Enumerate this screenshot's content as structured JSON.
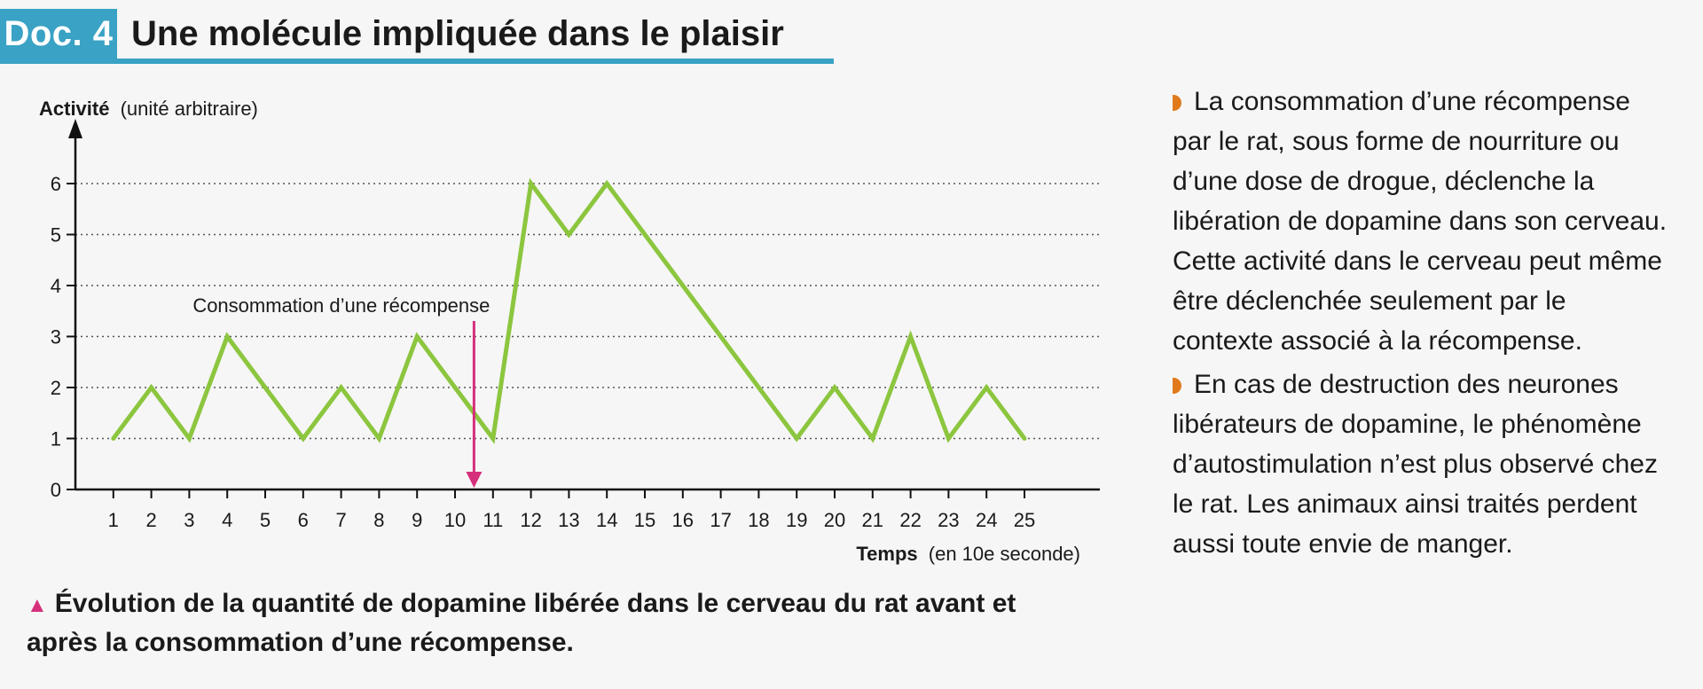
{
  "header": {
    "doc_label": "Doc. 4",
    "title": "Une molécule impliquée dans le plaisir"
  },
  "colors": {
    "accent": "#3aa2c4",
    "line": "#8cc63f",
    "arrow": "#d62f7c",
    "bullet": "#e07a1a"
  },
  "chart_data": {
    "type": "line",
    "ylabel_bold": "Activité",
    "ylabel_rest": "(unité arbitraire)",
    "xlabel_bold": "Temps",
    "xlabel_rest": "(en 10e seconde)",
    "x": [
      1,
      2,
      3,
      4,
      5,
      6,
      7,
      8,
      9,
      10,
      11,
      12,
      13,
      14,
      15,
      16,
      17,
      18,
      19,
      20,
      21,
      22,
      23,
      24,
      25
    ],
    "series": [
      {
        "values": [
          1,
          2,
          1,
          3,
          2,
          1,
          2,
          1,
          3,
          2,
          1,
          6,
          5,
          6,
          5,
          4,
          3,
          2,
          1,
          2,
          1,
          3,
          1,
          2,
          1
        ]
      }
    ],
    "xlim": [
      0,
      25
    ],
    "ylim": [
      0,
      6
    ],
    "yticks": [
      0,
      1,
      2,
      3,
      4,
      5,
      6
    ],
    "grid": "horizontal dotted",
    "annotation": {
      "text": "Consommation d’une récompense",
      "x": 10.5
    }
  },
  "caption": {
    "marker": "▲",
    "text": "Évolution de la quantité de dopamine libérée dans le cerveau du rat avant et après la consommation d’une récompense."
  },
  "side_text": {
    "p1": "La consommation d’une récompense par le rat, sous forme de nourriture ou d’une dose de drogue, déclenche la libération de dopamine dans son cerveau. Cette activité dans le cerveau peut même être déclenchée seulement par le contexte associé à la récompense.",
    "p2": "En cas de destruction des neurones libérateurs de dopamine, le phénomène d’autostimulation n’est plus observé chez le rat. Les animaux ainsi traités perdent aussi toute envie de manger."
  }
}
